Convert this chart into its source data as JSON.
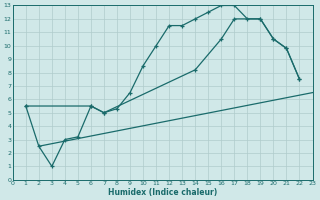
{
  "xlabel": "Humidex (Indice chaleur)",
  "xlim": [
    0,
    23
  ],
  "ylim": [
    0,
    13
  ],
  "xticks": [
    0,
    1,
    2,
    3,
    4,
    5,
    6,
    7,
    8,
    9,
    10,
    11,
    12,
    13,
    14,
    15,
    16,
    17,
    18,
    19,
    20,
    21,
    22,
    23
  ],
  "yticks": [
    0,
    1,
    2,
    3,
    4,
    5,
    6,
    7,
    8,
    9,
    10,
    11,
    12,
    13
  ],
  "bg_color": "#d0e8e8",
  "line_color": "#1a6b6b",
  "grid_color": "#b0cccc",
  "line1_x": [
    1,
    2,
    3,
    4,
    5,
    6,
    7,
    8,
    9,
    10,
    11,
    12,
    13,
    14,
    15,
    16,
    17,
    18,
    19,
    20,
    21,
    22
  ],
  "line1_y": [
    5.5,
    2.5,
    1.0,
    3.0,
    3.2,
    5.5,
    5.0,
    5.3,
    6.5,
    8.5,
    10.0,
    11.5,
    11.5,
    12.0,
    12.5,
    13.0,
    13.0,
    12.0,
    12.0,
    10.5,
    9.8,
    7.5
  ],
  "line2_x": [
    1,
    6,
    7,
    14,
    16,
    17,
    19,
    20,
    21,
    22
  ],
  "line2_y": [
    5.5,
    5.5,
    5.0,
    8.2,
    10.5,
    12.0,
    12.0,
    10.5,
    9.8,
    7.5
  ],
  "line3_x": [
    2,
    23
  ],
  "line3_y": [
    2.5,
    6.5
  ]
}
